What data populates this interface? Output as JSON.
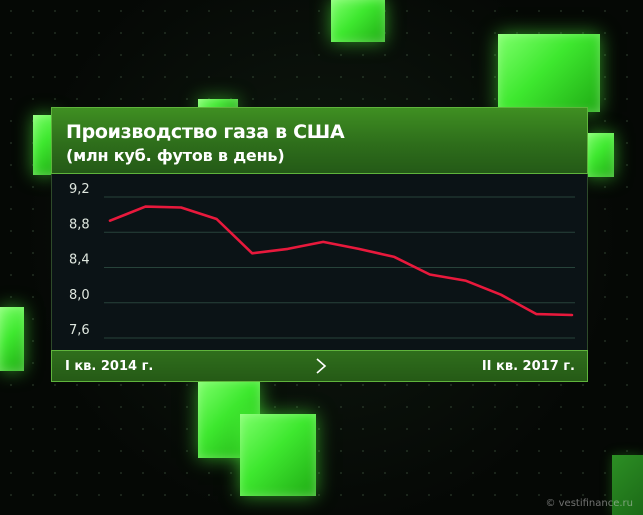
{
  "chart_data": {
    "type": "line",
    "title": "Производство газа в США",
    "subtitle": "(млн куб. футов в день)",
    "x_start_label": "I кв. 2014 г.",
    "x_end_label": "II кв. 2017 г.",
    "y_ticks": [
      "9,2",
      "8,8",
      "8,4",
      "8,0",
      "7,6"
    ],
    "y_tick_values": [
      9.2,
      8.8,
      8.4,
      8.0,
      7.6
    ],
    "ylim": [
      7.6,
      9.2
    ],
    "grid": true,
    "series": [
      {
        "color": "#e8193c",
        "values": [
          8.84,
          9.0,
          8.99,
          8.86,
          8.47,
          8.52,
          8.6,
          8.52,
          8.43,
          8.23,
          8.16,
          8.0,
          7.78,
          7.77
        ]
      }
    ]
  },
  "watermark": "© vestifinance.ru",
  "colors": {
    "accent_green": "#3ee82f",
    "line_red": "#e8193c"
  }
}
